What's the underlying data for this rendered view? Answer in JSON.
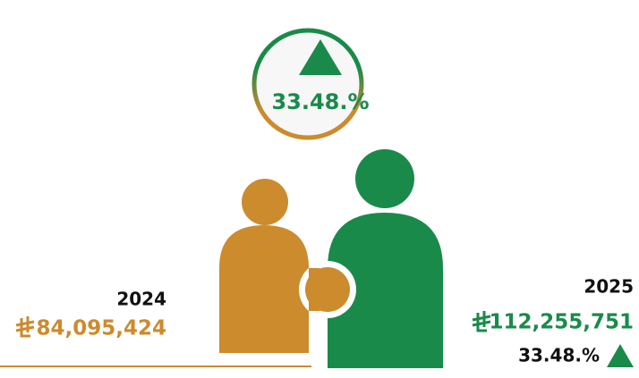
{
  "badge": {
    "percent": "33.48.%"
  },
  "previous": {
    "year": "2024",
    "amount": "84,095,424"
  },
  "current": {
    "year": "2025",
    "amount": "112,255,751",
    "percent": "33.48.%"
  }
}
